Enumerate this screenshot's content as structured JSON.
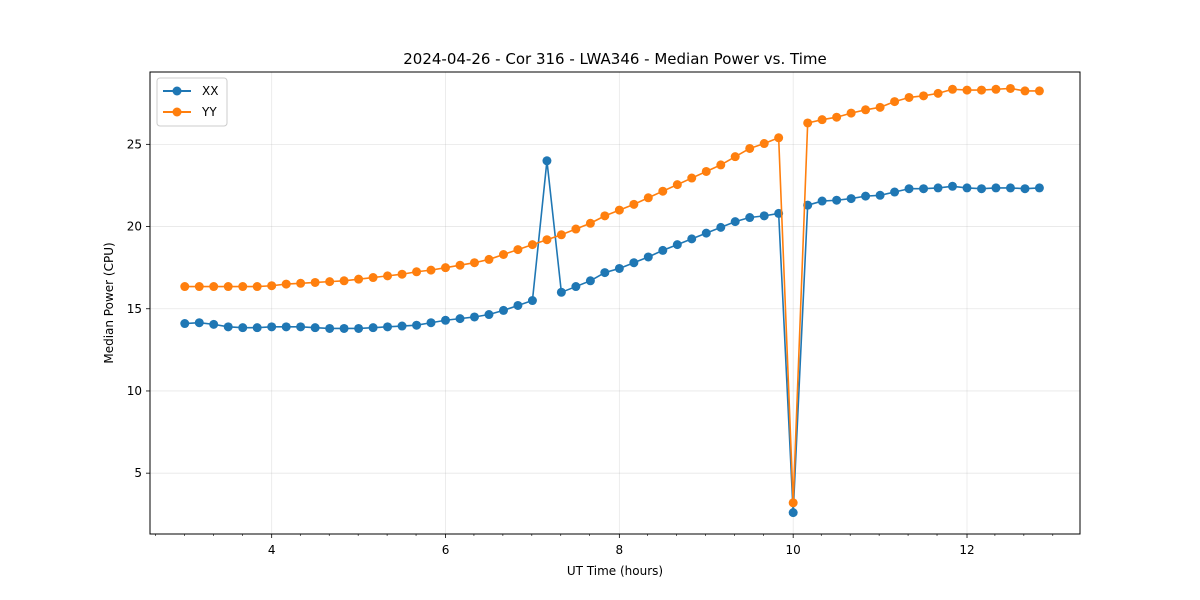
{
  "chart_data": {
    "type": "line",
    "title": "2024-04-26 - Cor 316 - LWA346 - Median Power vs. Time",
    "xlabel": "UT Time (hours)",
    "ylabel": "Median Power (CPU)",
    "xlim": [
      2.6,
      13.3
    ],
    "ylim": [
      1.3,
      29.4
    ],
    "xticks": [
      {
        "value": 4,
        "label": "4"
      },
      {
        "value": 6,
        "label": "6"
      },
      {
        "value": 8,
        "label": "8"
      },
      {
        "value": 10,
        "label": "10"
      },
      {
        "value": 12,
        "label": "12"
      }
    ],
    "yticks": [
      {
        "value": 5,
        "label": "5"
      },
      {
        "value": 10,
        "label": "10"
      },
      {
        "value": 15,
        "label": "15"
      },
      {
        "value": 20,
        "label": "20"
      },
      {
        "value": 25,
        "label": "25"
      }
    ],
    "x_minor_step": 0.333,
    "grid": true,
    "legend_position": "top-left",
    "x": [
      3.0,
      3.167,
      3.333,
      3.5,
      3.667,
      3.833,
      4.0,
      4.167,
      4.333,
      4.5,
      4.667,
      4.833,
      5.0,
      5.167,
      5.333,
      5.5,
      5.667,
      5.833,
      6.0,
      6.167,
      6.333,
      6.5,
      6.667,
      6.833,
      7.0,
      7.167,
      7.333,
      7.5,
      7.667,
      7.833,
      8.0,
      8.167,
      8.333,
      8.5,
      8.667,
      8.833,
      9.0,
      9.167,
      9.333,
      9.5,
      9.667,
      9.833,
      10.0,
      10.167,
      10.333,
      10.5,
      10.667,
      10.833,
      11.0,
      11.167,
      11.333,
      11.5,
      11.667,
      11.833,
      12.0,
      12.167,
      12.333,
      12.5,
      12.667,
      12.833
    ],
    "series": [
      {
        "name": "XX",
        "color": "#1f77b4",
        "values": [
          14.1,
          14.15,
          14.05,
          13.9,
          13.85,
          13.85,
          13.9,
          13.9,
          13.9,
          13.85,
          13.8,
          13.8,
          13.8,
          13.85,
          13.9,
          13.95,
          14.0,
          14.15,
          14.3,
          14.4,
          14.5,
          14.65,
          14.9,
          15.2,
          15.5,
          24.0,
          16.0,
          16.35,
          16.7,
          17.2,
          17.45,
          17.8,
          18.15,
          18.55,
          18.9,
          19.25,
          19.6,
          19.95,
          20.3,
          20.55,
          20.65,
          20.8,
          2.6,
          21.3,
          21.55,
          21.6,
          21.7,
          21.85,
          21.9,
          22.1,
          22.3,
          22.3,
          22.35,
          22.45,
          22.35,
          22.3,
          22.35,
          22.35,
          22.3,
          22.35
        ]
      },
      {
        "name": "YY",
        "color": "#ff7f0e",
        "values": [
          16.35,
          16.35,
          16.35,
          16.35,
          16.35,
          16.35,
          16.4,
          16.5,
          16.55,
          16.6,
          16.65,
          16.7,
          16.8,
          16.9,
          17.0,
          17.1,
          17.25,
          17.35,
          17.5,
          17.65,
          17.8,
          18.0,
          18.3,
          18.6,
          18.9,
          19.2,
          19.5,
          19.85,
          20.2,
          20.65,
          21.0,
          21.35,
          21.75,
          22.15,
          22.55,
          22.95,
          23.35,
          23.75,
          24.25,
          24.75,
          25.05,
          25.4,
          3.2,
          26.3,
          26.5,
          26.65,
          26.9,
          27.1,
          27.25,
          27.6,
          27.85,
          27.95,
          28.1,
          28.35,
          28.3,
          28.3,
          28.35,
          28.4,
          28.25,
          28.25
        ]
      }
    ]
  }
}
